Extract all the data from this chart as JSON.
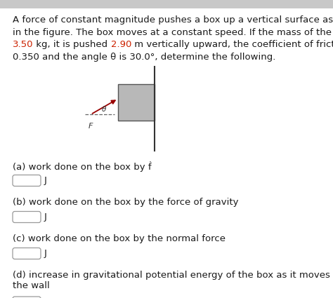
{
  "bg_color": "#ffffff",
  "text_color": "#1a1a1a",
  "red_color": "#cc2200",
  "line1": "A force of constant magnitude pushes a box up a vertical surface as shown",
  "line2": "in the figure. The box moves at a constant speed. If the mass of the box is",
  "line3_pre": "",
  "line3_red1": "3.50",
  "line3_mid": " kg, it is pushed ",
  "line3_red2": "2.90",
  "line3_post": " m vertically upward, the coefficient of friction is",
  "line4": "0.350 and the angle θ is 30.0°, determine the following.",
  "questions": [
    "(a) work done on the box by ḟ",
    "(b) work done on the box by the force of gravity",
    "(c) work done on the box by the normal force",
    "(d) increase in gravitational potential energy of the box as it moves up\nthe wall"
  ],
  "header_bar_color": "#c8c8c8",
  "wall_color": "#333333",
  "box_color": "#b8b8b8",
  "box_edge_color": "#555555",
  "arrow_color": "#990000",
  "dash_color": "#666666",
  "input_border_color": "#999999"
}
